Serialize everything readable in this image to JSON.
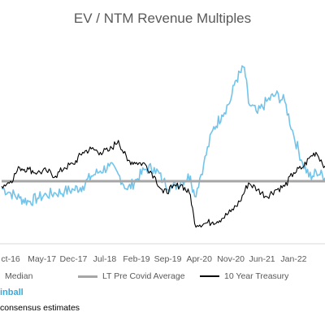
{
  "chart_data": {
    "type": "line",
    "title": "EV / NTM Revenue Multiples",
    "x_tick_labels": [
      "ct-16",
      "May-17",
      "Dec-17",
      "Jul-18",
      "Feb-19",
      "Sep-19",
      "Apr-20",
      "Nov-20",
      "Jun-21",
      "Jan-22"
    ],
    "x_tick_dates": [
      "2016-10",
      "2017-05",
      "2017-12",
      "2018-07",
      "2019-02",
      "2019-09",
      "2020-04",
      "2020-11",
      "2021-06",
      "2022-01"
    ],
    "series": [
      {
        "name": "Median",
        "color": "#72c4ea",
        "style": "solid",
        "points": [
          [
            "2016-08",
            6.9
          ],
          [
            "2016-10",
            6.6
          ],
          [
            "2016-12",
            6.3
          ],
          [
            "2017-02",
            6.1
          ],
          [
            "2017-04",
            6.3
          ],
          [
            "2017-06",
            6.5
          ],
          [
            "2017-08",
            6.6
          ],
          [
            "2017-10",
            6.7
          ],
          [
            "2017-12",
            6.8
          ],
          [
            "2018-02",
            7.0
          ],
          [
            "2018-04",
            7.6
          ],
          [
            "2018-06",
            7.9
          ],
          [
            "2018-08",
            8.2
          ],
          [
            "2018-10",
            7.7
          ],
          [
            "2018-12",
            6.8
          ],
          [
            "2019-02",
            7.4
          ],
          [
            "2019-04",
            8.0
          ],
          [
            "2019-06",
            8.1
          ],
          [
            "2019-08",
            7.3
          ],
          [
            "2019-10",
            6.9
          ],
          [
            "2019-12",
            7.3
          ],
          [
            "2020-02",
            7.6
          ],
          [
            "2020-03",
            6.4
          ],
          [
            "2020-05",
            8.3
          ],
          [
            "2020-07",
            10.3
          ],
          [
            "2020-09",
            11.2
          ],
          [
            "2020-11",
            12.1
          ],
          [
            "2020-12",
            13.2
          ],
          [
            "2021-02",
            14.0
          ],
          [
            "2021-03",
            11.9
          ],
          [
            "2021-05",
            11.3
          ],
          [
            "2021-07",
            12.0
          ],
          [
            "2021-09",
            12.4
          ],
          [
            "2021-11",
            12.0
          ],
          [
            "2022-01",
            10.0
          ],
          [
            "2022-03",
            8.4
          ],
          [
            "2022-05",
            7.4
          ],
          [
            "2022-06",
            7.9
          ],
          [
            "2022-08",
            7.5
          ]
        ]
      },
      {
        "name": "LT Pre Covid Average",
        "color": "#a6a6a6",
        "style": "solid",
        "points": [
          [
            "2016-08",
            7.3
          ],
          [
            "2022-08",
            7.3
          ]
        ]
      },
      {
        "name": "10 Year Treasury",
        "color": "#000000",
        "style": "solid",
        "points": [
          [
            "2016-08",
            7.0
          ],
          [
            "2016-10",
            7.3
          ],
          [
            "2016-12",
            8.1
          ],
          [
            "2017-02",
            8.0
          ],
          [
            "2017-04",
            7.8
          ],
          [
            "2017-06",
            7.9
          ],
          [
            "2017-08",
            7.6
          ],
          [
            "2017-10",
            8.1
          ],
          [
            "2017-12",
            8.3
          ],
          [
            "2018-02",
            9.0
          ],
          [
            "2018-04",
            9.2
          ],
          [
            "2018-06",
            9.0
          ],
          [
            "2018-08",
            9.1
          ],
          [
            "2018-10",
            9.7
          ],
          [
            "2018-12",
            8.5
          ],
          [
            "2019-02",
            8.4
          ],
          [
            "2019-04",
            8.3
          ],
          [
            "2019-06",
            7.6
          ],
          [
            "2019-08",
            6.6
          ],
          [
            "2019-10",
            6.9
          ],
          [
            "2019-12",
            7.1
          ],
          [
            "2020-02",
            6.5
          ],
          [
            "2020-03",
            4.8
          ],
          [
            "2020-05",
            4.8
          ],
          [
            "2020-07",
            4.9
          ],
          [
            "2020-09",
            5.1
          ],
          [
            "2020-11",
            5.5
          ],
          [
            "2021-01",
            6.1
          ],
          [
            "2021-03",
            7.2
          ],
          [
            "2021-05",
            6.8
          ],
          [
            "2021-07",
            6.4
          ],
          [
            "2021-09",
            6.8
          ],
          [
            "2021-11",
            7.0
          ],
          [
            "2022-01",
            7.8
          ],
          [
            "2022-03",
            8.1
          ],
          [
            "2022-05",
            8.8
          ],
          [
            "2022-06",
            9.0
          ],
          [
            "2022-08",
            8.2
          ]
        ]
      }
    ],
    "ylim": [
      4,
      15
    ],
    "grid": false,
    "legend_position": "bottom"
  },
  "legend": {
    "median": "Median",
    "lt_avg": "LT Pre Covid Average",
    "treasury": "10 Year Treasury"
  },
  "brand_text": "inball",
  "source_text": "consensus estimates"
}
